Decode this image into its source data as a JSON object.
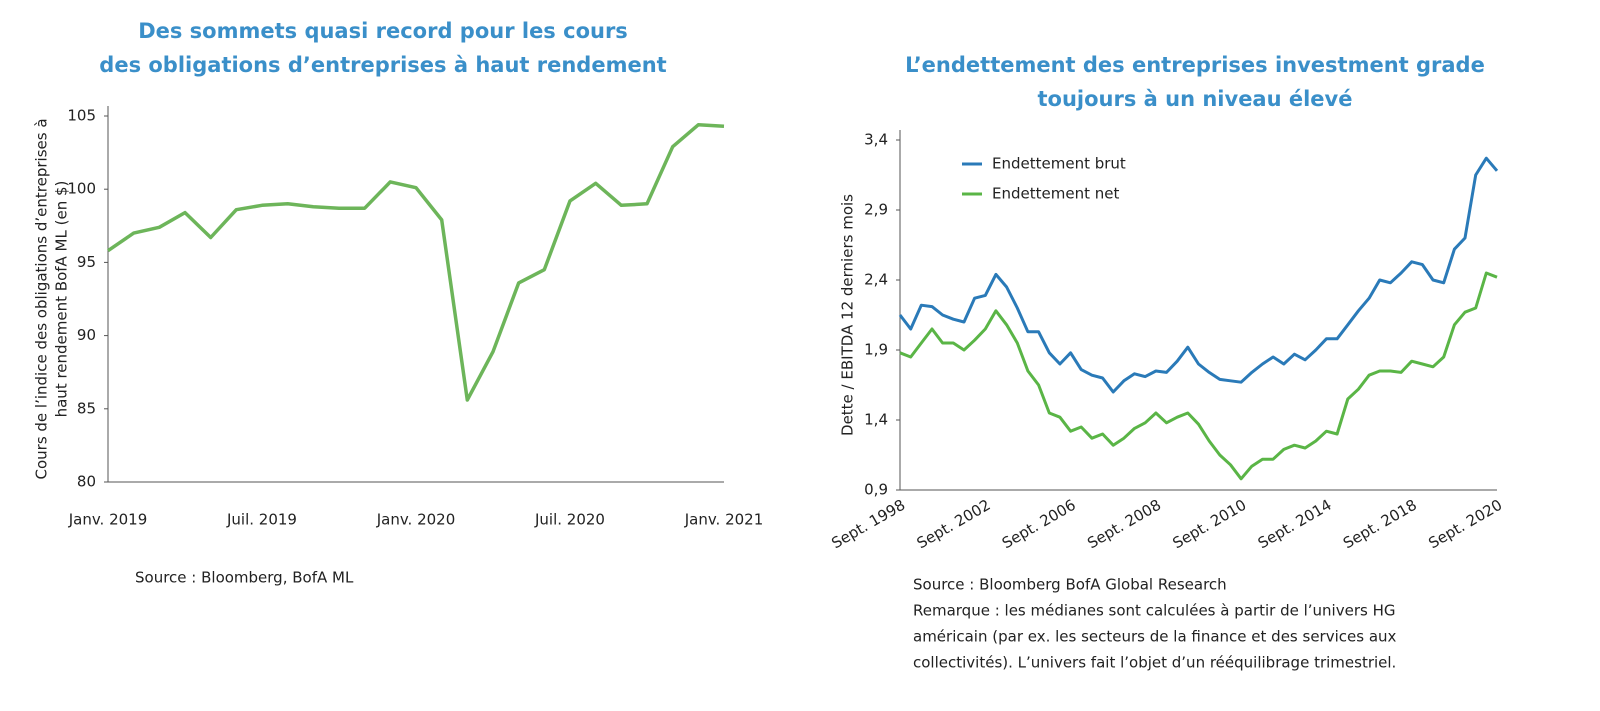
{
  "chart_data": [
    {
      "type": "line",
      "title": [
        "Des sommets quasi record pour les cours",
        "des obligations d’entreprises à haut rendement"
      ],
      "ylabel": [
        "Cours de l’indice des obligations d’entreprises à",
        "haut rendement BofA ML (en $)"
      ],
      "categories": [
        "Janv. 2019",
        null,
        null,
        null,
        null,
        null,
        "Juil. 2019",
        null,
        null,
        null,
        null,
        null,
        "Janv. 2020",
        null,
        null,
        null,
        null,
        null,
        "Juil. 2020",
        null,
        null,
        null,
        null,
        null,
        "Janv. 2021"
      ],
      "series": [
        {
          "name": null,
          "color": "#6db55a",
          "values": [
            95.8,
            97,
            97.4,
            98.4,
            96.7,
            98.6,
            98.9,
            99,
            98.8,
            98.7,
            98.7,
            100.5,
            100.1,
            97.9,
            85.6,
            88.9,
            93.6,
            94.5,
            99.2,
            100.4,
            98.9,
            99,
            102.9,
            104.4,
            104.3
          ]
        }
      ],
      "ylim": [
        80,
        105
      ],
      "yticks": [
        80,
        85,
        90,
        95,
        100,
        105
      ],
      "source": [
        "Source : Bloomberg, BofA ML"
      ]
    },
    {
      "type": "line",
      "title": [
        "L’endettement des entreprises investment grade",
        "toujours à un niveau élevé"
      ],
      "ylabel": [
        "Dette / EBITDA 12 derniers mois"
      ],
      "categories": [
        "Sept. 1998",
        null,
        null,
        null,
        null,
        null,
        null,
        null,
        "Sept. 2002",
        null,
        null,
        null,
        null,
        null,
        null,
        null,
        "Sept. 2006",
        null,
        null,
        null,
        null,
        null,
        null,
        null,
        "Sept. 2008",
        null,
        null,
        null,
        null,
        null,
        null,
        null,
        "Sept. 2010",
        null,
        null,
        null,
        null,
        null,
        null,
        null,
        "Sept. 2014",
        null,
        null,
        null,
        null,
        null,
        null,
        null,
        "Sept. 2018",
        null,
        null,
        null,
        null,
        null,
        null,
        null,
        "Sept. 2020"
      ],
      "series": [
        {
          "name": "Endettement brut",
          "color": "#2a7ab8",
          "values": [
            2.15,
            2.05,
            2.22,
            2.21,
            2.15,
            2.12,
            2.1,
            2.27,
            2.29,
            2.44,
            2.35,
            2.2,
            2.03,
            2.03,
            1.88,
            1.8,
            1.88,
            1.76,
            1.72,
            1.7,
            1.6,
            1.68,
            1.73,
            1.71,
            1.75,
            1.74,
            1.82,
            1.92,
            1.8,
            1.74,
            1.69,
            1.68,
            1.67,
            1.74,
            1.8,
            1.85,
            1.8,
            1.87,
            1.83,
            1.9,
            1.98,
            1.98,
            2.08,
            2.18,
            2.27,
            2.4,
            2.38,
            2.45,
            2.53,
            2.51,
            2.4,
            2.38,
            2.62,
            2.7,
            3.15,
            3.27,
            3.18
          ]
        },
        {
          "name": "Endettement net",
          "color": "#5ab546",
          "values": [
            1.88,
            1.85,
            1.95,
            2.05,
            1.95,
            1.95,
            1.9,
            1.97,
            2.05,
            2.18,
            2.08,
            1.95,
            1.75,
            1.65,
            1.45,
            1.42,
            1.32,
            1.35,
            1.27,
            1.3,
            1.22,
            1.27,
            1.34,
            1.38,
            1.45,
            1.38,
            1.42,
            1.45,
            1.37,
            1.25,
            1.15,
            1.08,
            0.98,
            1.07,
            1.12,
            1.12,
            1.19,
            1.22,
            1.2,
            1.25,
            1.32,
            1.3,
            1.55,
            1.62,
            1.72,
            1.75,
            1.75,
            1.74,
            1.82,
            1.8,
            1.78,
            1.85,
            2.08,
            2.17,
            2.2,
            2.45,
            2.42
          ]
        }
      ],
      "ylim": [
        0.9,
        3.4
      ],
      "yticks": [
        {
          "value": 0.9,
          "label": "0,9"
        },
        {
          "value": 1.4,
          "label": "1,4"
        },
        {
          "value": 1.9,
          "label": "1,9"
        },
        {
          "value": 2.4,
          "label": "2,4"
        },
        {
          "value": 2.9,
          "label": "2,9"
        },
        {
          "value": 3.4,
          "label": "3,4"
        }
      ],
      "legend": "upper left",
      "source": [
        "Source : Bloomberg BofA Global Research",
        "Remarque : les médianes sont calculées à partir de l’univers HG",
        "américain (par ex. les secteurs de la finance et des services aux",
        "collectivités). L’univers fait l’objet d’un rééquilibrage trimestriel."
      ]
    }
  ]
}
